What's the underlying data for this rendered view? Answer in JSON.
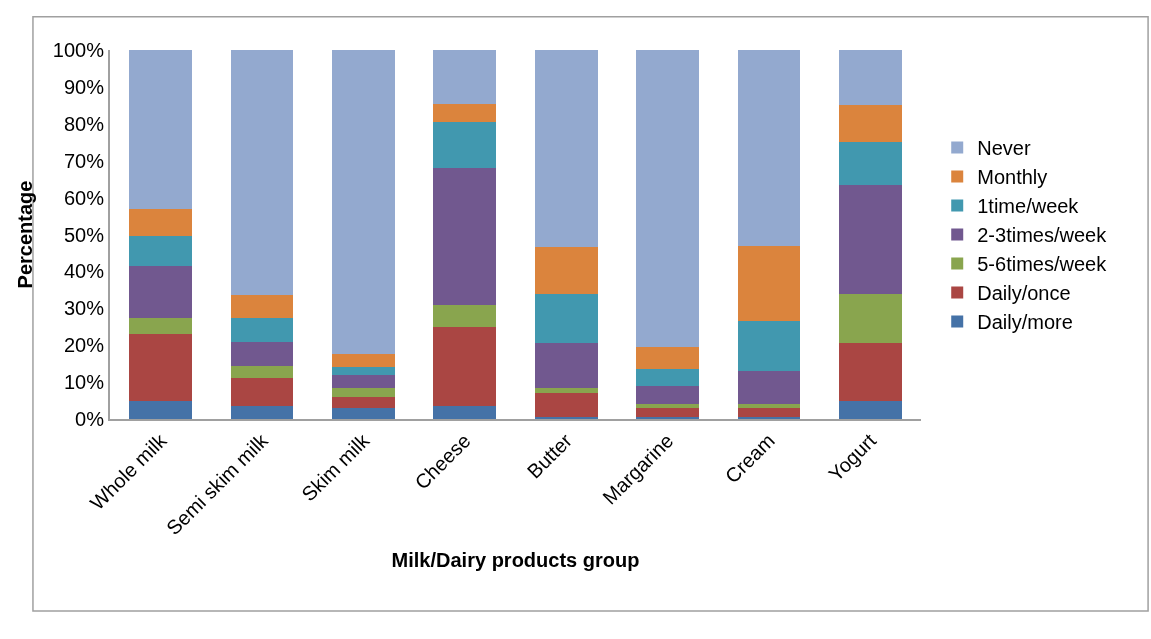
{
  "chart_data": {
    "type": "bar",
    "stacked": true,
    "xlabel": "Milk/Dairy products group",
    "ylabel": "Percentage",
    "categories": [
      "Whole milk",
      "Semi skim milk",
      "Skim milk",
      "Cheese",
      "Butter",
      "Margarine",
      "Cream",
      "Yogurt"
    ],
    "series": [
      {
        "name": "Daily/more",
        "color": "#4572a7",
        "values": [
          5,
          3.5,
          3,
          3.5,
          0.5,
          0.5,
          0.5,
          5
        ]
      },
      {
        "name": "Daily/once",
        "color": "#aa4643",
        "values": [
          18,
          7.5,
          3,
          21.5,
          6.5,
          2.5,
          2.5,
          15.5
        ]
      },
      {
        "name": "5-6times/week",
        "color": "#89a54e",
        "values": [
          4.5,
          3.5,
          2.5,
          6,
          1.5,
          1,
          1,
          13.5
        ]
      },
      {
        "name": "2-3times/week",
        "color": "#71588f",
        "values": [
          14,
          6.5,
          3.5,
          37,
          12,
          5,
          9,
          29.5
        ]
      },
      {
        "name": "1time/week",
        "color": "#4198af",
        "values": [
          8,
          6.5,
          2,
          12.5,
          13.5,
          4.5,
          13.5,
          11.5
        ]
      },
      {
        "name": "Monthly",
        "color": "#db843d",
        "values": [
          7.5,
          6,
          3.5,
          5,
          12.5,
          6,
          20.5,
          10
        ]
      },
      {
        "name": "Never",
        "color": "#93a9cf",
        "values": [
          43,
          66.5,
          82.5,
          14.5,
          53.5,
          80.5,
          53,
          15
        ]
      }
    ],
    "ylim": [
      0,
      100
    ],
    "yticks": [
      {
        "value": 0,
        "label": "0%"
      },
      {
        "value": 10,
        "label": "10%"
      },
      {
        "value": 20,
        "label": "20%"
      },
      {
        "value": 30,
        "label": "30%"
      },
      {
        "value": 40,
        "label": "40%"
      },
      {
        "value": 50,
        "label": "50%"
      },
      {
        "value": 60,
        "label": "60%"
      },
      {
        "value": 70,
        "label": "70%"
      },
      {
        "value": 80,
        "label": "80%"
      },
      {
        "value": 90,
        "label": "90%"
      },
      {
        "value": 100,
        "label": "100%"
      }
    ],
    "grid": false,
    "legend": "right"
  }
}
